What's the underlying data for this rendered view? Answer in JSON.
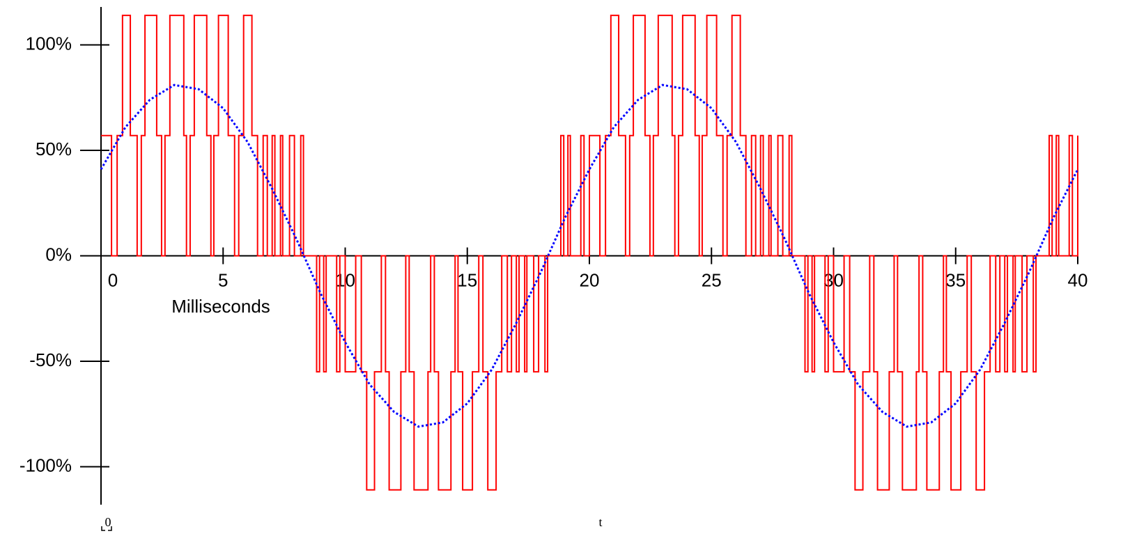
{
  "chart_data": {
    "type": "line",
    "x_label": "Milliseconds",
    "annotations": [
      "0",
      "t"
    ],
    "xlim": [
      0,
      40
    ],
    "xticks": [
      0,
      5,
      10,
      15,
      20,
      25,
      30,
      35,
      40
    ],
    "ylim": [
      -118,
      118
    ],
    "yticks": [
      {
        "value": 100,
        "label": "100%"
      },
      {
        "value": 50,
        "label": "50%"
      },
      {
        "value": 0,
        "label": "0%"
      },
      {
        "value": -50,
        "label": "-50%"
      },
      {
        "value": -100,
        "label": "-100%"
      }
    ],
    "series": [
      {
        "color": "#ff0000",
        "step": true,
        "x": [
          0,
          0.43,
          0.66,
          0.88,
          1.2,
          1.48,
          1.65,
          1.8,
          2.28,
          2.48,
          2.62,
          2.82,
          3.39,
          3.5,
          3.65,
          3.82,
          4.33,
          4.5,
          4.62,
          4.81,
          5.21,
          5.47,
          5.64,
          5.84,
          6.18,
          6.41,
          6.64,
          6.81,
          7.01,
          7.12,
          7.35,
          7.44,
          7.72,
          7.92,
          8.18,
          8.29,
          8.83,
          8.95,
          9.12,
          9.22,
          9.65,
          9.78,
          10,
          10.43,
          10.66,
          10.88,
          11.2,
          11.48,
          11.65,
          11.8,
          12.28,
          12.48,
          12.62,
          12.82,
          13.39,
          13.5,
          13.65,
          13.82,
          14.33,
          14.5,
          14.62,
          14.81,
          15.21,
          15.47,
          15.64,
          15.84,
          16.18,
          16.41,
          16.64,
          16.81,
          17.01,
          17.12,
          17.35,
          17.44,
          17.72,
          17.92,
          18.18,
          18.29,
          18.83,
          18.95,
          19.12,
          19.22,
          19.65,
          19.78,
          20,
          20.43,
          20.66,
          20.88,
          21.2,
          21.48,
          21.65,
          21.8,
          22.28,
          22.48,
          22.62,
          22.82,
          23.39,
          23.5,
          23.65,
          23.82,
          24.33,
          24.5,
          24.62,
          24.81,
          25.21,
          25.47,
          25.64,
          25.84,
          26.18,
          26.41,
          26.64,
          26.81,
          27.01,
          27.12,
          27.35,
          27.44,
          27.72,
          27.92,
          28.18,
          28.29,
          28.83,
          28.95,
          29.12,
          29.22,
          29.65,
          29.78,
          30,
          30.43,
          30.66,
          30.88,
          31.2,
          31.48,
          31.65,
          31.8,
          32.28,
          32.48,
          32.62,
          32.82,
          33.39,
          33.5,
          33.65,
          33.82,
          34.33,
          34.5,
          34.62,
          34.81,
          35.21,
          35.47,
          35.64,
          35.84,
          36.18,
          36.41,
          36.64,
          36.81,
          37.01,
          37.12,
          37.35,
          37.44,
          37.72,
          37.92,
          38.18,
          38.29,
          38.83,
          38.95,
          39.12,
          39.22,
          39.65,
          39.78,
          40
        ],
        "values": [
          57,
          0,
          57,
          114,
          57,
          0,
          57,
          114,
          57,
          0,
          57,
          114,
          57,
          0,
          57,
          114,
          57,
          0,
          57,
          114,
          57,
          0,
          57,
          114,
          57,
          0,
          57,
          0,
          57,
          0,
          57,
          0,
          57,
          0,
          57,
          0,
          -55,
          0,
          -55,
          0,
          -55,
          0,
          -55,
          0,
          -55,
          -111,
          -55,
          0,
          -55,
          -111,
          -55,
          0,
          -55,
          -111,
          -55,
          0,
          -55,
          -111,
          -55,
          0,
          -55,
          -111,
          -55,
          0,
          -55,
          -111,
          -55,
          0,
          -55,
          0,
          -55,
          0,
          -55,
          0,
          -55,
          0,
          -55,
          0,
          57,
          0,
          57,
          0,
          57,
          0,
          57,
          0,
          57,
          114,
          57,
          0,
          57,
          114,
          57,
          0,
          57,
          114,
          57,
          0,
          57,
          114,
          57,
          0,
          57,
          114,
          57,
          0,
          57,
          114,
          57,
          0,
          57,
          0,
          57,
          0,
          57,
          0,
          57,
          0,
          57,
          0,
          -55,
          0,
          -55,
          0,
          -55,
          0,
          -55,
          0,
          -55,
          -111,
          -55,
          0,
          -55,
          -111,
          -55,
          0,
          -55,
          -111,
          -55,
          0,
          -55,
          -111,
          -55,
          0,
          -55,
          -111,
          -55,
          0,
          -55,
          -111,
          -55,
          0,
          -55,
          0,
          -55,
          0,
          -55,
          0,
          -55,
          0,
          -55,
          0,
          57,
          0,
          57,
          0,
          57,
          0,
          57
        ]
      },
      {
        "color": "#0000ff",
        "dotted": true,
        "x": [
          0,
          1,
          2,
          3,
          4,
          5,
          6,
          7,
          8,
          9,
          10,
          11,
          12,
          13,
          14,
          15,
          16,
          17,
          18,
          19,
          20,
          21,
          22,
          23,
          24,
          25,
          26,
          27,
          28,
          29,
          30,
          31,
          32,
          33,
          34,
          35,
          36,
          37,
          38,
          39,
          40
        ],
        "values": [
          41,
          61,
          74,
          81,
          79,
          70,
          54,
          32,
          8,
          -18,
          -41,
          -61,
          -74,
          -81,
          -79,
          -70,
          -54,
          -32,
          -8,
          18,
          41,
          61,
          74,
          81,
          79,
          70,
          54,
          32,
          8,
          -18,
          -41,
          -61,
          -74,
          -81,
          -79,
          -70,
          -54,
          -32,
          -8,
          18,
          41
        ]
      }
    ]
  }
}
